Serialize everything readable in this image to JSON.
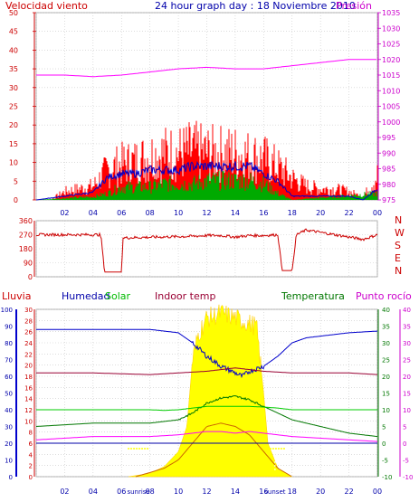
{
  "header": {
    "title": "24 hour graph day : 18 Noviembre 2010",
    "left_label": "Velocidad viento",
    "right_label": "Presión"
  },
  "colors": {
    "wind": "#ff0000",
    "gust_avg": "#0000cc",
    "wind_green": "#00aa00",
    "pressure": "#ff00ff",
    "direction": "#cc0000",
    "humidity": "#0000cc",
    "solar": "#00cc00",
    "indoor": "#990033",
    "temperature": "#007700",
    "dewpoint": "#ff00ff",
    "rain": "#cc0000",
    "sun": "#ffff00",
    "grid": "#c8c8c8",
    "zero_line": "#0000aa"
  },
  "time_axis": {
    "labels": [
      "02",
      "04",
      "06",
      "08",
      "10",
      "12",
      "14",
      "16",
      "18",
      "20",
      "22",
      "00"
    ],
    "labels_bottom": [
      "02",
      "04",
      "06",
      "08",
      "10",
      "12",
      "14",
      "16",
      "18",
      "20",
      "22",
      "00"
    ]
  },
  "chart_data": [
    {
      "type": "line",
      "title": "24 hour graph day : 18 Noviembre 2010",
      "x_range": [
        0,
        24
      ],
      "y_left": {
        "label": "Velocidad viento",
        "ticks": [
          "0",
          "5",
          "10",
          "15",
          "20",
          "25",
          "30",
          "35",
          "40",
          "45",
          "50"
        ],
        "range": [
          0,
          50
        ]
      },
      "y_right": {
        "label": "Presión",
        "ticks": [
          "975",
          "980",
          "985",
          "990",
          "995",
          "1000",
          "1005",
          "1010",
          "1015",
          "1020",
          "1025",
          "1030",
          "1035"
        ],
        "range": [
          975,
          1035
        ]
      },
      "series": [
        {
          "name": "Presión",
          "points": [
            [
              0,
              1015
            ],
            [
              2,
              1015
            ],
            [
              4,
              1014.5
            ],
            [
              6,
              1015
            ],
            [
              8,
              1016
            ],
            [
              10,
              1017
            ],
            [
              12,
              1017.5
            ],
            [
              14,
              1017
            ],
            [
              16,
              1017
            ],
            [
              18,
              1018
            ],
            [
              20,
              1019
            ],
            [
              22,
              1020
            ],
            [
              23,
              1020
            ],
            [
              24,
              1020
            ]
          ]
        }
      ],
      "wind_envelope": [
        [
          0,
          0
        ],
        [
          1,
          0
        ],
        [
          2,
          3
        ],
        [
          3,
          4
        ],
        [
          4,
          5
        ],
        [
          5,
          11
        ],
        [
          6,
          13
        ],
        [
          7,
          14
        ],
        [
          8,
          16
        ],
        [
          9,
          17
        ],
        [
          10,
          17
        ],
        [
          11,
          18
        ],
        [
          12,
          17
        ],
        [
          13,
          17
        ],
        [
          14,
          17
        ],
        [
          15,
          16
        ],
        [
          16,
          15
        ],
        [
          17,
          12
        ],
        [
          18,
          8
        ],
        [
          19,
          5
        ],
        [
          20,
          4
        ],
        [
          21,
          4
        ],
        [
          22,
          3
        ],
        [
          23,
          1
        ],
        [
          24,
          9
        ]
      ],
      "wind_avg": [
        [
          0,
          0
        ],
        [
          2,
          1
        ],
        [
          4,
          2
        ],
        [
          5,
          6
        ],
        [
          6,
          7
        ],
        [
          7,
          7
        ],
        [
          8,
          8
        ],
        [
          9,
          8
        ],
        [
          10,
          8
        ],
        [
          11,
          9
        ],
        [
          12,
          9
        ],
        [
          13,
          9
        ],
        [
          14,
          9
        ],
        [
          15,
          9
        ],
        [
          16,
          7
        ],
        [
          17,
          5
        ],
        [
          18,
          1
        ],
        [
          19,
          1
        ],
        [
          20,
          1
        ],
        [
          21,
          1
        ],
        [
          22,
          1
        ],
        [
          23,
          0
        ],
        [
          24,
          3
        ]
      ],
      "wind_green": [
        [
          0,
          0
        ],
        [
          4,
          1
        ],
        [
          5,
          2
        ],
        [
          6,
          4
        ],
        [
          7,
          4
        ],
        [
          8,
          4
        ],
        [
          9,
          5
        ],
        [
          10,
          5
        ],
        [
          11,
          5
        ],
        [
          12,
          6
        ],
        [
          13,
          6
        ],
        [
          14,
          6
        ],
        [
          15,
          6
        ],
        [
          16,
          5
        ],
        [
          17,
          2
        ],
        [
          18,
          0
        ],
        [
          24,
          2
        ]
      ]
    },
    {
      "type": "line",
      "y_left": {
        "ticks": [
          "0",
          "90",
          "180",
          "270",
          "360"
        ],
        "range": [
          0,
          360
        ]
      },
      "y_right": {
        "ticks": [
          "N",
          "W",
          "S",
          "E",
          "N"
        ]
      },
      "direction": [
        [
          0,
          270
        ],
        [
          4.5,
          270
        ],
        [
          4.6,
          230
        ],
        [
          4.8,
          30
        ],
        [
          6,
          30
        ],
        [
          6.1,
          250
        ],
        [
          11,
          260
        ],
        [
          12,
          265
        ],
        [
          13,
          265
        ],
        [
          14,
          255
        ],
        [
          15,
          265
        ],
        [
          16,
          265
        ],
        [
          17,
          270
        ],
        [
          17.3,
          40
        ],
        [
          18,
          40
        ],
        [
          18.3,
          270
        ],
        [
          19,
          300
        ],
        [
          23,
          240
        ],
        [
          24,
          270
        ]
      ]
    },
    {
      "type": "line",
      "y_rain": {
        "label": "Lluvia",
        "ticks": [
          "0",
          "2",
          "4",
          "6",
          "8",
          "10",
          "12",
          "14",
          "16",
          "18",
          "20",
          "22",
          "24",
          "26",
          "28",
          "30"
        ],
        "range": [
          0,
          30
        ]
      },
      "y_hum": {
        "label": "Humedad",
        "ticks": [
          "0",
          "10",
          "20",
          "30",
          "40",
          "50",
          "60",
          "70",
          "80",
          "90",
          "100"
        ],
        "range": [
          0,
          100
        ]
      },
      "y_temp": {
        "label": "Temperatura",
        "ticks": [
          "-10",
          "-5",
          "0",
          "5",
          "10",
          "15",
          "20",
          "25",
          "30",
          "35",
          "40"
        ],
        "range": [
          -10,
          40
        ]
      },
      "y_dew": {
        "label": "Punto rocío",
        "ticks": [
          "-10",
          "-5",
          "0",
          "5",
          "10",
          "15",
          "20",
          "25",
          "30",
          "35",
          "40"
        ],
        "range": [
          -10,
          40
        ]
      },
      "legend": [
        "Humedad",
        "Solar",
        "Indoor temp",
        "Temperatura",
        "Punto rocío"
      ],
      "series": [
        {
          "name": "Humedad",
          "points": [
            [
              0,
              88
            ],
            [
              4,
              88
            ],
            [
              6,
              88
            ],
            [
              8,
              88
            ],
            [
              9,
              87
            ],
            [
              10,
              86
            ],
            [
              11,
              80
            ],
            [
              12,
              72
            ],
            [
              13,
              66
            ],
            [
              14,
              62
            ],
            [
              14.5,
              60
            ],
            [
              15,
              63
            ],
            [
              16,
              66
            ],
            [
              17,
              72
            ],
            [
              18,
              80
            ],
            [
              19,
              83
            ],
            [
              20,
              84
            ],
            [
              22,
              86
            ],
            [
              24,
              87
            ]
          ]
        },
        {
          "name": "Temperatura",
          "points": [
            [
              0,
              5
            ],
            [
              2,
              5.5
            ],
            [
              4,
              6
            ],
            [
              6,
              6
            ],
            [
              8,
              6
            ],
            [
              9,
              6.5
            ],
            [
              10,
              7
            ],
            [
              11,
              9
            ],
            [
              12,
              12
            ],
            [
              13,
              13.5
            ],
            [
              14,
              14
            ],
            [
              15,
              13
            ],
            [
              16,
              11
            ],
            [
              17,
              9
            ],
            [
              18,
              7
            ],
            [
              19,
              6
            ],
            [
              20,
              5
            ],
            [
              22,
              3
            ],
            [
              24,
              2
            ]
          ]
        },
        {
          "name": "Punto rocío",
          "points": [
            [
              0,
              1
            ],
            [
              2,
              1.5
            ],
            [
              4,
              2
            ],
            [
              6,
              2
            ],
            [
              8,
              2
            ],
            [
              10,
              2.5
            ],
            [
              11,
              3
            ],
            [
              12,
              3.5
            ],
            [
              13,
              3.5
            ],
            [
              14,
              3
            ],
            [
              15,
              3.5
            ],
            [
              16,
              3
            ],
            [
              17,
              2.5
            ],
            [
              18,
              2
            ],
            [
              20,
              1.5
            ],
            [
              22,
              1
            ],
            [
              24,
              0.5
            ]
          ]
        },
        {
          "name": "Indoor temp",
          "points": [
            [
              0,
              21
            ],
            [
              4,
              21
            ],
            [
              8,
              20.5
            ],
            [
              10,
              21
            ],
            [
              12,
              21.5
            ],
            [
              13,
              22
            ],
            [
              14,
              22.5
            ],
            [
              15,
              22
            ],
            [
              16,
              21.5
            ],
            [
              18,
              21
            ],
            [
              20,
              21
            ],
            [
              22,
              21
            ],
            [
              24,
              20.5
            ]
          ]
        },
        {
          "name": "Solar",
          "points": [
            [
              0,
              10
            ],
            [
              4,
              10
            ],
            [
              6,
              10
            ],
            [
              8,
              10
            ],
            [
              9,
              9.8
            ],
            [
              10,
              10
            ],
            [
              11,
              10.5
            ],
            [
              12,
              11
            ],
            [
              13,
              11
            ],
            [
              14,
              11
            ],
            [
              15,
              11
            ],
            [
              16,
              10.8
            ],
            [
              17,
              10.5
            ],
            [
              18,
              10
            ],
            [
              20,
              10
            ],
            [
              22,
              10
            ],
            [
              24,
              10
            ]
          ]
        }
      ],
      "sun_area": [
        [
          6.5,
          0
        ],
        [
          8,
          0.2
        ],
        [
          9,
          0.6
        ],
        [
          10,
          1.5
        ],
        [
          10.6,
          3
        ],
        [
          11,
          7
        ],
        [
          11.4,
          8.5
        ],
        [
          12,
          9.5
        ],
        [
          12.5,
          9.6
        ],
        [
          13,
          9.8
        ],
        [
          14,
          9.5
        ],
        [
          14.5,
          9.3
        ],
        [
          15.5,
          9
        ],
        [
          16,
          5
        ],
        [
          16.3,
          2
        ],
        [
          17,
          0.5
        ],
        [
          18,
          0
        ]
      ],
      "sun_curve": [
        [
          7,
          0
        ],
        [
          9,
          0.5
        ],
        [
          10,
          1
        ],
        [
          11,
          2
        ],
        [
          12,
          3
        ],
        [
          13,
          3.2
        ],
        [
          14,
          3
        ],
        [
          15,
          2.5
        ],
        [
          16,
          1.5
        ],
        [
          17,
          0.5
        ],
        [
          18,
          0
        ]
      ],
      "x_labels": [
        "02",
        "04",
        "sunrise",
        "06",
        "08",
        "10",
        "12",
        "14",
        "16",
        "sunset",
        "18",
        "20",
        "22",
        "00"
      ],
      "markers": [
        {
          "label": "sunrise",
          "x": 7.2
        },
        {
          "label": "sunset",
          "x": 16.8
        }
      ]
    }
  ]
}
